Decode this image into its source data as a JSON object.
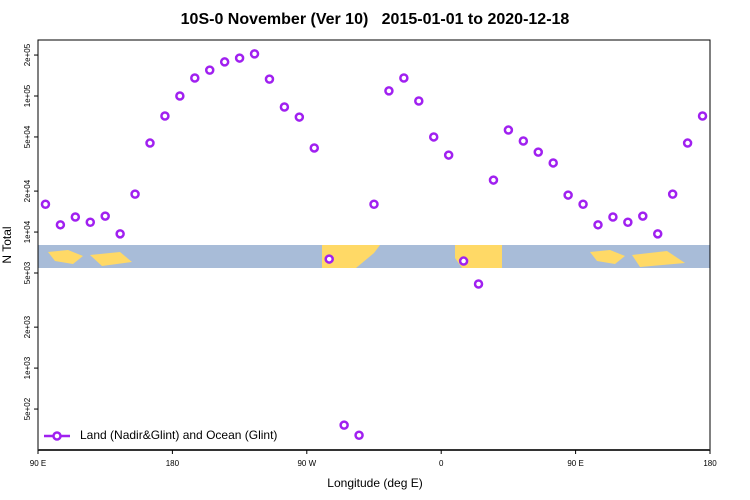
{
  "chart_data": {
    "type": "scatter",
    "title": "10S-0 November (Ver 10)   2015-01-01 to 2020-12-18",
    "x_label": "Longitude (deg E)",
    "y_label": "N Total",
    "log_y": true,
    "legend": "bottom-left",
    "xlim": [
      90,
      540
    ],
    "xticks": [
      {
        "value": 90,
        "label": "90 E"
      },
      180,
      {
        "value": 270,
        "label": "90 W"
      },
      {
        "value": 360,
        "label": "0"
      },
      {
        "value": 450,
        "label": "90 E"
      },
      {
        "value": 540,
        "label": "180"
      }
    ],
    "ylim": [
      250,
      258000
    ],
    "yticks": [
      {
        "value": 500,
        "label": "5e+02"
      },
      {
        "value": 1000,
        "label": "1e+03"
      },
      {
        "value": 2000,
        "label": "2e+03"
      },
      {
        "value": 5000,
        "label": "5e+03"
      },
      {
        "value": 10000,
        "label": "1e+04"
      },
      {
        "value": 20000,
        "label": "2e+04"
      },
      {
        "value": 50000,
        "label": "5e+04"
      },
      {
        "value": 100000,
        "label": "1e+05"
      },
      {
        "value": 200000,
        "label": "2e+05"
      }
    ],
    "x": [
      95,
      105,
      115,
      125,
      135,
      145,
      155,
      165,
      175,
      185,
      195,
      205,
      215,
      225,
      235,
      245,
      255,
      265,
      275,
      285,
      295,
      305,
      315,
      325,
      335,
      345,
      355,
      365,
      375,
      385,
      395,
      405,
      415,
      425,
      435,
      445,
      455,
      465,
      475,
      485,
      495,
      505,
      515,
      525,
      535
    ],
    "series": [
      {
        "name": "Land (Nadir&Glint) and Ocean (Glint)",
        "color": "#a020f0",
        "values": [
          16000,
          11300,
          12900,
          11800,
          13100,
          9700,
          19000,
          45100,
          71300,
          100000,
          135600,
          155000,
          178000,
          190000,
          204000,
          133000,
          83000,
          70000,
          41500,
          6330,
          381,
          321,
          16000,
          109000,
          135600,
          91900,
          50000,
          36800,
          6120,
          4150,
          24100,
          56200,
          46700,
          38700,
          32200,
          18700,
          16000,
          11300,
          12900,
          11800,
          13100,
          9700,
          19000,
          45100,
          71300
        ]
      }
    ]
  }
}
